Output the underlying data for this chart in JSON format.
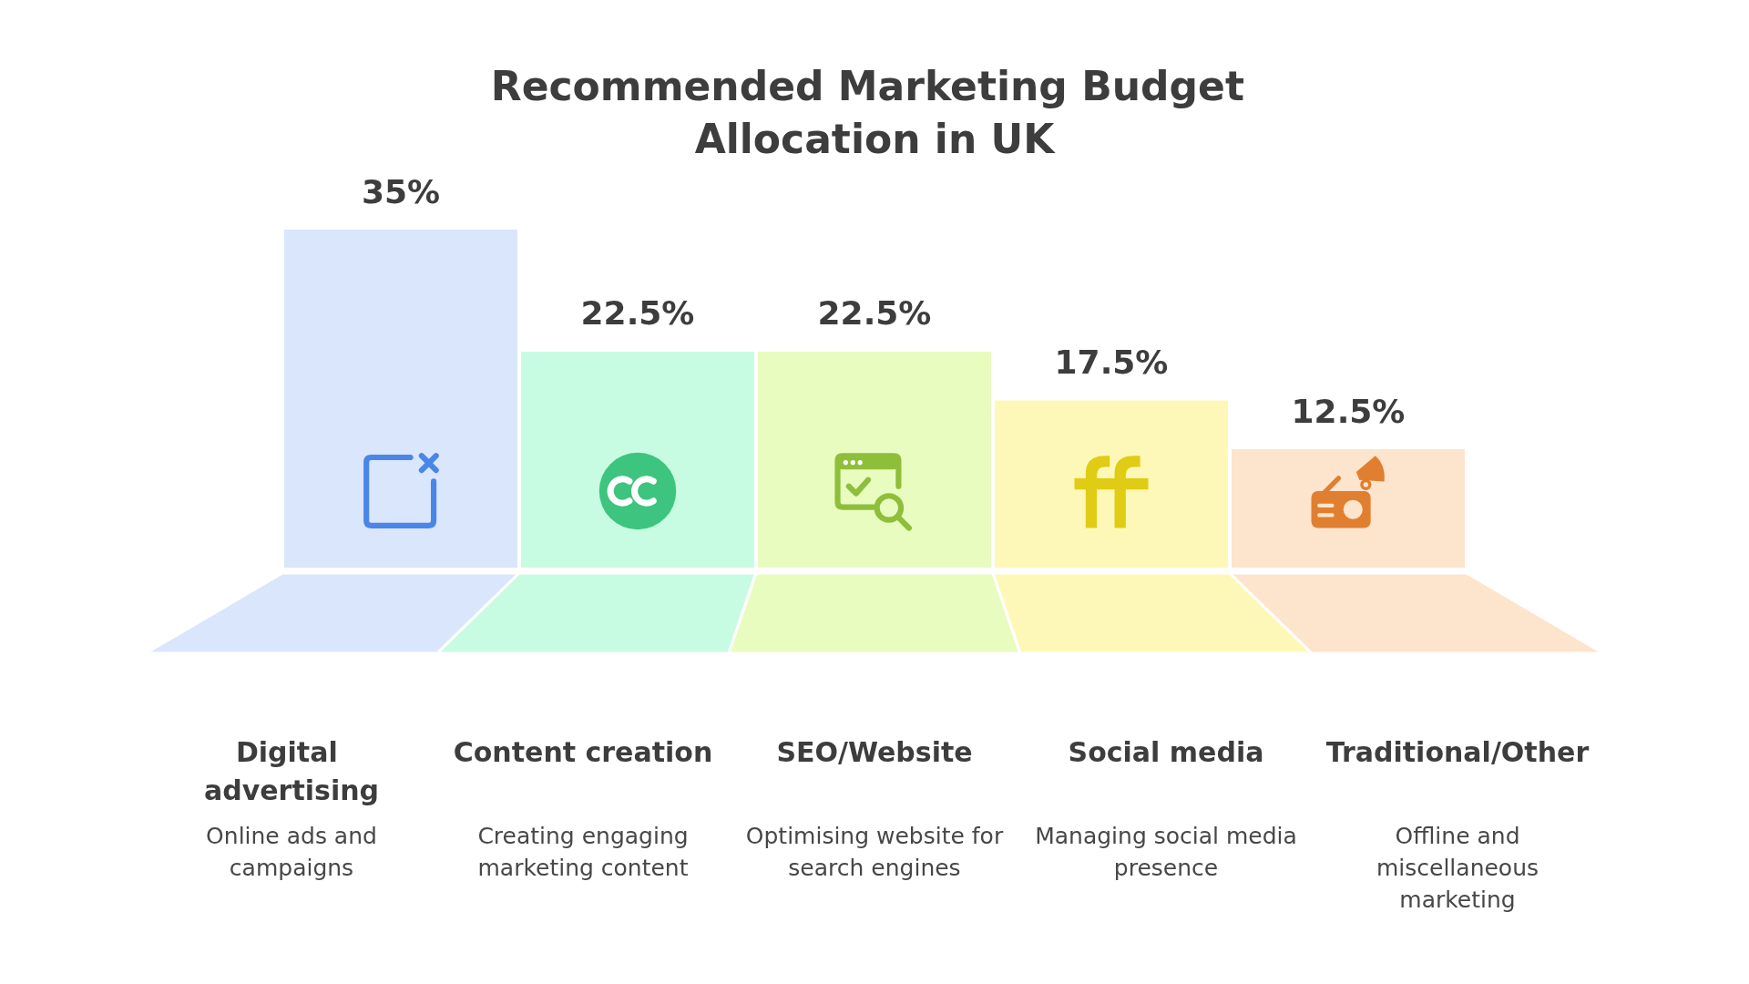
{
  "chart_data": {
    "type": "bar",
    "title": "Recommended Marketing Budget Allocation in UK",
    "categories": [
      "Digital advertising",
      "Content creation",
      "SEO/Website",
      "Social media",
      "Traditional/Other"
    ],
    "values": [
      35,
      22.5,
      22.5,
      17.5,
      12.5
    ],
    "colors": [
      "#dae6fc",
      "#c8fce2",
      "#e8fcc0",
      "#fef8b8",
      "#fde4cc"
    ],
    "value_labels": [
      "35%",
      "22.5%",
      "22.5%",
      "17.5%",
      "12.5%"
    ],
    "ylim": [
      0,
      35
    ],
    "tick_labels": "x",
    "annotations": [
      "Online ads and campaigns",
      "Creating engaging marketing content",
      "Optimising website for search engines",
      "Managing social media presence",
      "Offline and miscellaneous marketing"
    ]
  }
}
